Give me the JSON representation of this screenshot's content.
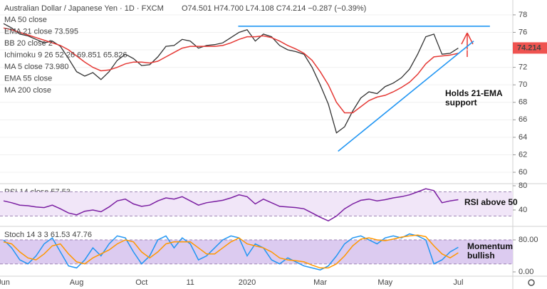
{
  "chart_data": [
    {
      "type": "line",
      "title": "Australian Dollar / Japanese Yen · 1D · FXCM",
      "ohlc": "O74.501 H74.700 L74.108 C74.214 −0.287 (−0.39%)",
      "indicator_labels": [
        "MA 50 close",
        "EMA 21 close 73.595",
        "BB 20 close 2",
        "Ichimoku 9 26 52 26 69.851 65.826",
        "MA 5 close 73.980",
        "EMA 55 close",
        "MA 200 close"
      ],
      "annotation": [
        "Holds 21-EMA",
        "support"
      ],
      "last_price": 74.214,
      "categories": [
        "Jun",
        null,
        null,
        null,
        null,
        null,
        null,
        null,
        null,
        "Aug",
        null,
        null,
        null,
        null,
        null,
        null,
        null,
        "Oct",
        null,
        null,
        null,
        null,
        null,
        "11",
        null,
        null,
        null,
        null,
        null,
        null,
        "2020",
        null,
        null,
        null,
        null,
        null,
        null,
        null,
        null,
        "Mar",
        null,
        null,
        null,
        null,
        null,
        null,
        null,
        "May",
        null,
        null,
        null,
        null,
        null,
        null,
        null,
        null,
        "Jul"
      ],
      "ylim": [
        58.7,
        79.7
      ],
      "yticks": [
        60,
        62,
        64,
        66,
        68,
        70,
        72,
        74,
        76,
        78
      ],
      "grid": true,
      "series": [
        {
          "name": "Close",
          "color": "#333333",
          "values": [
            77.0,
            76.5,
            75.8,
            75.6,
            75.2,
            74.8,
            75.0,
            74.4,
            73.0,
            71.5,
            71.0,
            71.4,
            70.6,
            71.5,
            72.8,
            73.5,
            73.0,
            72.2,
            72.3,
            73.2,
            74.4,
            74.5,
            75.2,
            75.0,
            74.2,
            74.5,
            74.6,
            74.8,
            75.4,
            76.0,
            76.3,
            75.0,
            75.8,
            75.5,
            74.5,
            74.0,
            73.8,
            73.5,
            72.0,
            70.0,
            67.8,
            64.5,
            65.2,
            67.0,
            68.5,
            69.2,
            69.0,
            69.8,
            70.2,
            70.8,
            71.8,
            73.5,
            75.5,
            75.8,
            73.5,
            73.6,
            74.2
          ]
        },
        {
          "name": "EMA 21",
          "color": "#e53935",
          "values": [
            76.5,
            76.3,
            76.0,
            75.7,
            75.4,
            75.1,
            74.8,
            74.5,
            74.0,
            73.3,
            72.6,
            72.0,
            71.6,
            71.7,
            72.0,
            72.4,
            72.6,
            72.6,
            72.5,
            72.7,
            73.2,
            73.7,
            74.2,
            74.4,
            74.4,
            74.4,
            74.4,
            74.5,
            74.8,
            75.2,
            75.5,
            75.5,
            75.6,
            75.4,
            75.0,
            74.5,
            74.1,
            73.6,
            72.8,
            71.5,
            70.0,
            68.0,
            66.8,
            66.8,
            67.5,
            68.2,
            68.6,
            68.8,
            69.2,
            69.7,
            70.3,
            71.2,
            72.4,
            73.2,
            73.3,
            73.4,
            73.6
          ]
        }
      ],
      "lines": [
        {
          "color": "#2196f3",
          "x": [
            28.9,
            59.9
          ],
          "y": [
            76.7,
            76.7
          ]
        },
        {
          "color": "#2196f3",
          "x": [
            41.2,
            57.9
          ],
          "y": [
            62.4,
            75.0
          ]
        }
      ]
    },
    {
      "type": "line",
      "label": "RSI 14 close 57.53",
      "annotation": [
        "RSI above 50"
      ],
      "ylim": [
        12.9,
        83.5
      ],
      "yticks": [
        40,
        80
      ],
      "band": [
        30,
        70
      ],
      "band_color": "#f1e6f8",
      "series": [
        {
          "name": "RSI",
          "color": "#7b1fa2",
          "values": [
            55,
            52,
            48,
            47,
            45,
            44,
            48,
            42,
            35,
            32,
            38,
            40,
            37,
            45,
            55,
            58,
            50,
            46,
            48,
            55,
            60,
            58,
            62,
            55,
            48,
            52,
            54,
            56,
            60,
            65,
            62,
            50,
            58,
            52,
            46,
            45,
            44,
            42,
            35,
            28,
            22,
            30,
            42,
            50,
            56,
            58,
            55,
            57,
            60,
            62,
            65,
            70,
            75,
            72,
            52,
            55,
            57
          ]
        }
      ]
    },
    {
      "type": "line",
      "label": "Stoch 14 3 3 61.53 47.76",
      "annotation": [
        "Momentum",
        "bullish"
      ],
      "ylim": [
        -10.7,
        113.8
      ],
      "yticks": [
        {
          "value": 0,
          "label": "0.00"
        },
        {
          "value": 80,
          "label": "80.00"
        }
      ],
      "band": [
        20,
        80
      ],
      "band_color": "#dccbf0",
      "series": [
        {
          "name": "%K",
          "color": "#2196f3",
          "values": [
            80,
            60,
            30,
            20,
            40,
            70,
            85,
            50,
            15,
            10,
            30,
            60,
            40,
            70,
            90,
            85,
            50,
            20,
            40,
            80,
            90,
            60,
            85,
            70,
            30,
            40,
            60,
            80,
            90,
            85,
            40,
            70,
            60,
            30,
            20,
            35,
            25,
            15,
            10,
            5,
            15,
            40,
            70,
            85,
            90,
            80,
            70,
            85,
            90,
            85,
            95,
            90,
            80,
            20,
            30,
            50,
            61.5
          ]
        },
        {
          "name": "%D",
          "color": "#ff9800",
          "values": [
            75,
            70,
            50,
            35,
            30,
            45,
            65,
            70,
            45,
            25,
            20,
            35,
            45,
            55,
            70,
            80,
            75,
            50,
            35,
            50,
            70,
            75,
            75,
            75,
            60,
            45,
            45,
            60,
            75,
            85,
            70,
            65,
            60,
            50,
            35,
            30,
            28,
            25,
            17,
            10,
            10,
            20,
            40,
            65,
            82,
            85,
            80,
            78,
            82,
            87,
            90,
            92,
            88,
            65,
            45,
            35,
            47.8
          ]
        }
      ]
    }
  ]
}
